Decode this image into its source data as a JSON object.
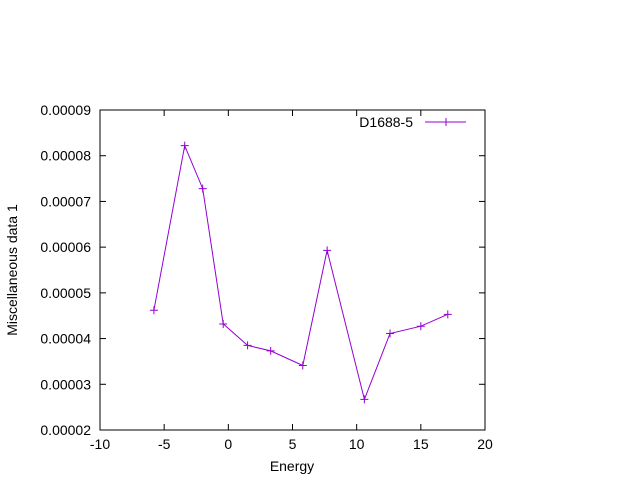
{
  "chart_data": {
    "type": "line",
    "xlabel": "Energy",
    "ylabel": "Miscellaneous data 1",
    "xlim": [
      -10,
      20
    ],
    "ylim": [
      2e-05,
      9e-05
    ],
    "x_ticks": [
      -10,
      -5,
      0,
      5,
      10,
      15,
      20
    ],
    "x_tick_labels": [
      "-10",
      "-5",
      "0",
      "5",
      "10",
      "15",
      "20"
    ],
    "y_ticks": [
      2e-05,
      3e-05,
      4e-05,
      5e-05,
      6e-05,
      7e-05,
      8e-05,
      9e-05
    ],
    "y_tick_labels": [
      "0.00002",
      "0.00003",
      "0.00004",
      "0.00005",
      "0.00006",
      "0.00007",
      "0.00008",
      "0.00009"
    ],
    "grid": false,
    "legend_position": "top-right",
    "series": [
      {
        "name": "D1688-5",
        "color": "#9400d3",
        "marker": "plus",
        "x": [
          -5.8,
          -3.4,
          -2.0,
          -0.4,
          1.5,
          3.3,
          5.8,
          7.7,
          10.6,
          12.6,
          15.0,
          17.1
        ],
        "y": [
          4.62e-05,
          8.22e-05,
          7.28e-05,
          4.32e-05,
          3.85e-05,
          3.73e-05,
          3.41e-05,
          5.93e-05,
          2.67e-05,
          4.11e-05,
          4.27e-05,
          4.53e-05
        ]
      }
    ]
  }
}
